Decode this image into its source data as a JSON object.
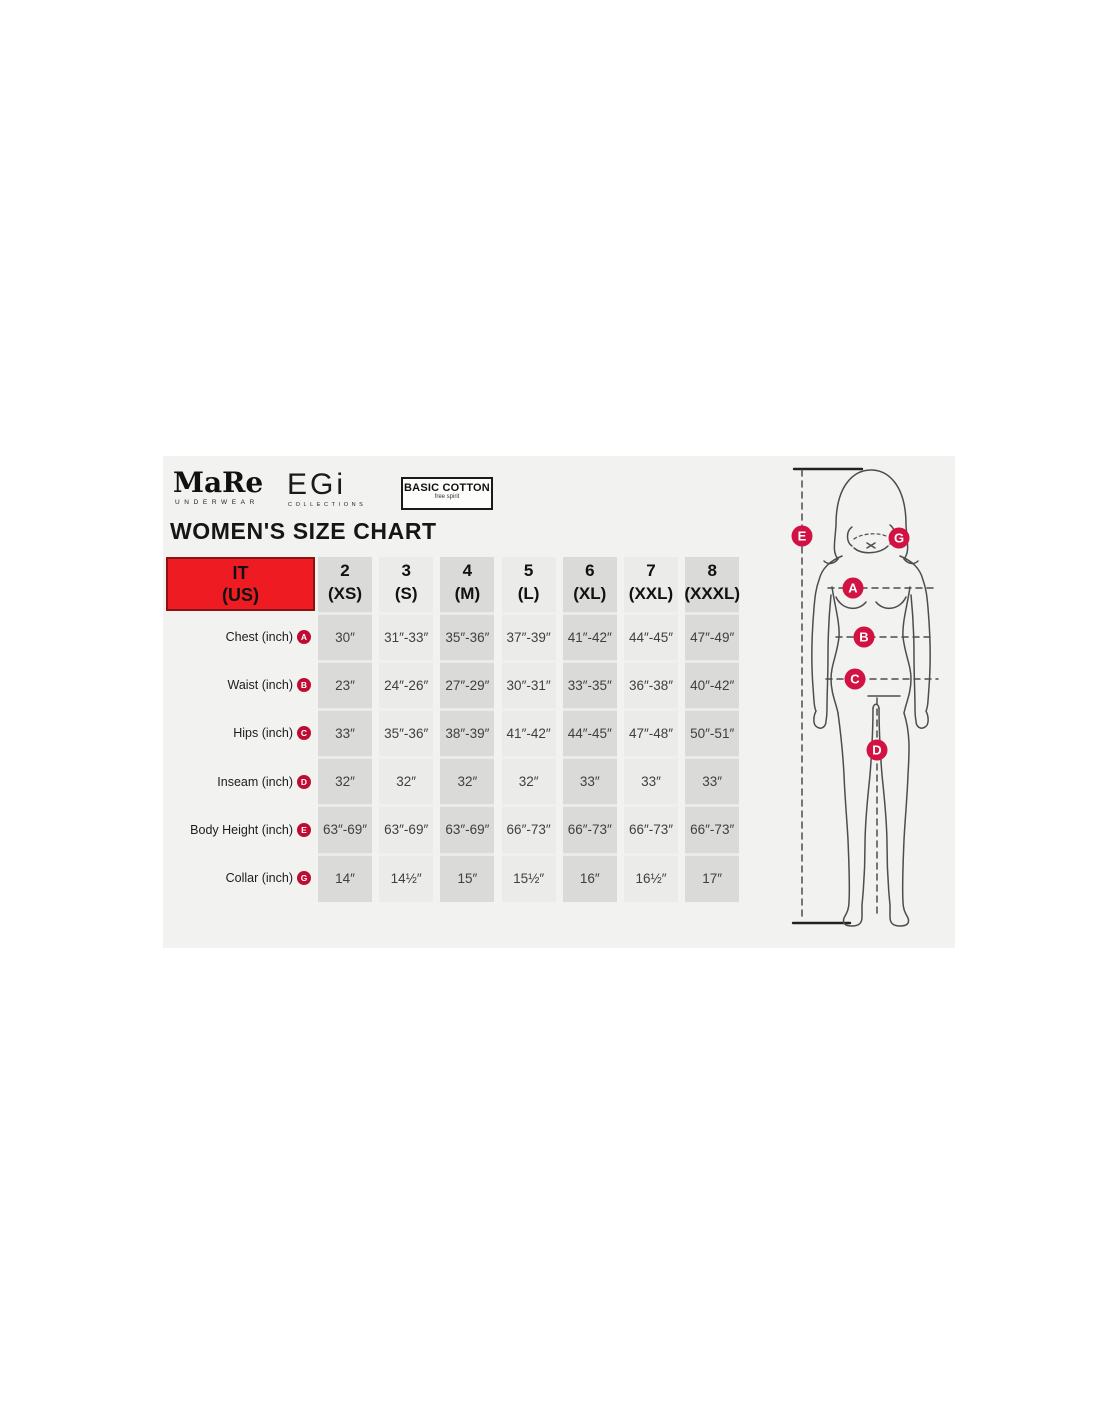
{
  "title": "WOMEN'S SIZE CHART",
  "brands": {
    "mare": {
      "name": "MaRe",
      "sub": "UNDERWEAR"
    },
    "egi": {
      "name": "EGi",
      "sub": "COLLECTIONS"
    },
    "basic_cotton": {
      "line1": "BASIC COTTON",
      "line2": "free spirit"
    }
  },
  "size_chart": {
    "corner": {
      "top": "IT",
      "bottom": "(US)"
    },
    "columns": [
      {
        "size": "2",
        "label": "(XS)"
      },
      {
        "size": "3",
        "label": "(S)"
      },
      {
        "size": "4",
        "label": "(M)"
      },
      {
        "size": "5",
        "label": "(L)"
      },
      {
        "size": "6",
        "label": "(XL)"
      },
      {
        "size": "7",
        "label": "(XXL)"
      },
      {
        "size": "8",
        "label": "(XXXL)"
      }
    ],
    "rows": [
      {
        "label": "Chest (inch)",
        "marker": "A",
        "values": [
          "30″",
          "31″-33″",
          "35″-36″",
          "37″-39″",
          "41″-42″",
          "44″-45″",
          "47″-49″"
        ]
      },
      {
        "label": "Waist (inch)",
        "marker": "B",
        "values": [
          "23″",
          "24″-26″",
          "27″-29″",
          "30″-31″",
          "33″-35″",
          "36″-38″",
          "40″-42″"
        ]
      },
      {
        "label": "Hips (inch)",
        "marker": "C",
        "values": [
          "33″",
          "35″-36″",
          "38″-39″",
          "41″-42″",
          "44″-45″",
          "47″-48″",
          "50″-51″"
        ]
      },
      {
        "label": "Inseam (inch)",
        "marker": "D",
        "values": [
          "32″",
          "32″",
          "32″",
          "32″",
          "33″",
          "33″",
          "33″"
        ]
      },
      {
        "label": "Body Height (inch)",
        "marker": "E",
        "values": [
          "63″-69″",
          "63″-69″",
          "63″-69″",
          "66″-73″",
          "66″-73″",
          "66″-73″",
          "66″-73″"
        ]
      },
      {
        "label": "Collar (inch)",
        "marker": "G",
        "values": [
          "14″",
          "14½″",
          "15″",
          "15½″",
          "16″",
          "16½″",
          "17″"
        ]
      }
    ]
  },
  "figure": {
    "markers": [
      "E",
      "G",
      "A",
      "B",
      "C",
      "D"
    ]
  },
  "colors": {
    "header_red": "#ee1b22",
    "badge_red": "#bf0c32",
    "figure_marker_red": "#d11243",
    "stripe_dark": "#dadad8",
    "stripe_light": "#ebebe9",
    "panel_bg": "#f2f2f0"
  }
}
